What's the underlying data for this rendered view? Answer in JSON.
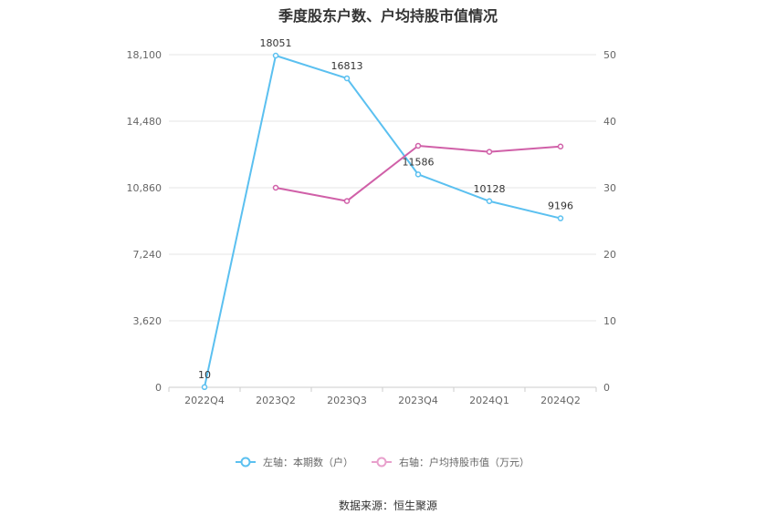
{
  "chart_data": {
    "type": "line",
    "title": "季度股东户数、户均持股市值情况",
    "categories": [
      "2022Q4",
      "2023Q2",
      "2023Q3",
      "2023Q4",
      "2024Q1",
      "2024Q2"
    ],
    "series": [
      {
        "name": "左轴：本期数（户）",
        "axis": "left",
        "color": "#5bc0f0",
        "values": [
          10,
          18051,
          16813,
          11586,
          10128,
          9196
        ],
        "labels": [
          "10",
          "18051",
          "16813",
          "11586",
          "10128",
          "9196"
        ]
      },
      {
        "name": "右轴：户均持股市值（万元）",
        "axis": "right",
        "color": "#d060a8",
        "legend_color": "#e8a0cc",
        "values": [
          null,
          30.0,
          28.0,
          36.3,
          35.4,
          36.2
        ]
      }
    ],
    "left_axis": {
      "min": 0,
      "max": 18100,
      "ticks": [
        0,
        3620,
        7240,
        10860,
        14480,
        18100
      ],
      "tick_labels": [
        "0",
        "3,620",
        "7,240",
        "10,860",
        "14,480",
        "18,100"
      ]
    },
    "right_axis": {
      "min": 0,
      "max": 50,
      "ticks": [
        0,
        10,
        20,
        30,
        40,
        50
      ],
      "tick_labels": [
        "0",
        "10",
        "20",
        "30",
        "40",
        "50"
      ]
    },
    "grid": true,
    "legend_position": "bottom"
  },
  "source_text": "数据来源：恒生聚源"
}
